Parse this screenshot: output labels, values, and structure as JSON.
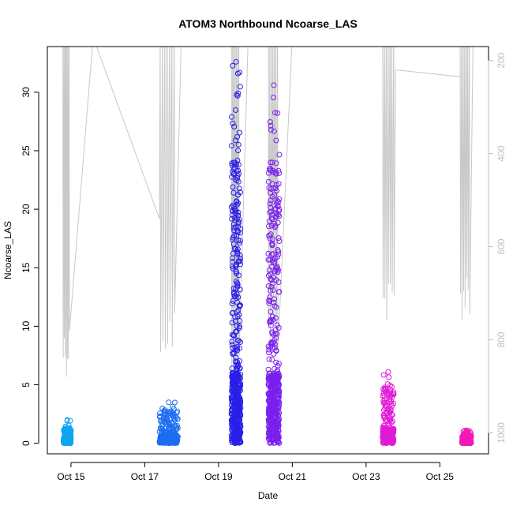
{
  "chart_data": {
    "type": "scatter",
    "title": "ATOM3 Northbound Ncoarse_LAS",
    "xlabel": "Date",
    "ylabel": "Ncoarse_LAS",
    "x_ticks": [
      {
        "day": 15,
        "label": "Oct 15"
      },
      {
        "day": 17,
        "label": "Oct 17"
      },
      {
        "day": 19,
        "label": "Oct 19"
      },
      {
        "day": 21,
        "label": "Oct 21"
      },
      {
        "day": 23,
        "label": "Oct 23"
      },
      {
        "day": 25,
        "label": "Oct 25"
      }
    ],
    "xlim": [
      "Oct 14.4",
      "Oct 26.3"
    ],
    "y_ticks": [
      0,
      5,
      10,
      15,
      20,
      25,
      30
    ],
    "ylim": [
      -0.9,
      33.9
    ],
    "right_axis": {
      "ticks": [
        200,
        400,
        600,
        800,
        1000
      ],
      "lim_top": 170,
      "lim_bottom": 1045,
      "inverted": true,
      "color": "#bfbfbf",
      "series_note": "pressure altitude trace (grey line)"
    },
    "grid": false,
    "legend": "none",
    "series": [
      {
        "group": 1,
        "date_start": 14.8,
        "date_end": 15.0,
        "color": "#0ea5f0",
        "max_value": 2.0,
        "bulk_max": 1.3
      },
      {
        "group": 2,
        "date_start": 17.4,
        "date_end": 17.9,
        "color": "#1b6cf0",
        "max_value": 3.5,
        "bulk_max": 2.8
      },
      {
        "group": 3,
        "date_start": 19.35,
        "date_end": 19.6,
        "color": "#2a1fe8",
        "max_value": 32.6,
        "bulk_max": 24.0
      },
      {
        "group": 4,
        "date_start": 20.35,
        "date_end": 20.65,
        "color": "#7a1fee",
        "max_value": 30.6,
        "bulk_max": 24.0
      },
      {
        "group": 5,
        "date_start": 23.45,
        "date_end": 23.75,
        "color": "#e01ad6",
        "max_value": 6.1,
        "bulk_max": 4.8
      },
      {
        "group": 6,
        "date_start": 25.6,
        "date_end": 25.85,
        "color": "#f01ab4",
        "max_value": 1.1,
        "bulk_max": 0.7
      }
    ]
  }
}
